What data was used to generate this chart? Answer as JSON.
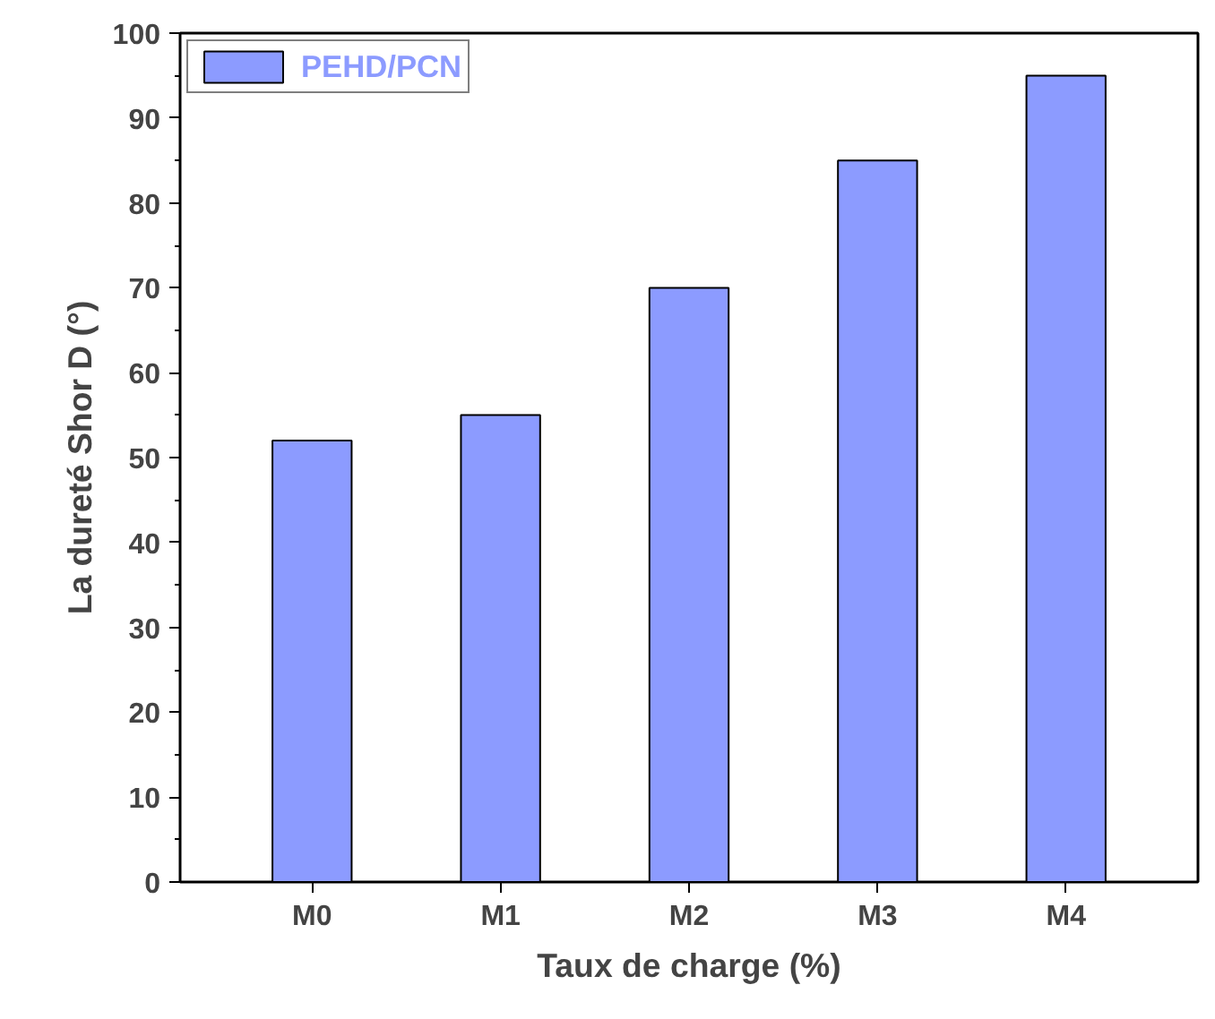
{
  "chart_data": {
    "type": "bar",
    "xlabel": "Taux de charge (%)",
    "ylabel": "La dureté Shor D (°)",
    "categories": [
      "M0",
      "M1",
      "M2",
      "M3",
      "M4"
    ],
    "series": [
      {
        "name": "PEHD/PCN",
        "color": "#8c9bff",
        "values": [
          52,
          55,
          70,
          85,
          95
        ]
      }
    ],
    "ylim": [
      0,
      100
    ],
    "yticks": [
      0,
      10,
      20,
      30,
      40,
      50,
      60,
      70,
      80,
      90,
      100
    ],
    "grid": false,
    "legend": "top left"
  }
}
